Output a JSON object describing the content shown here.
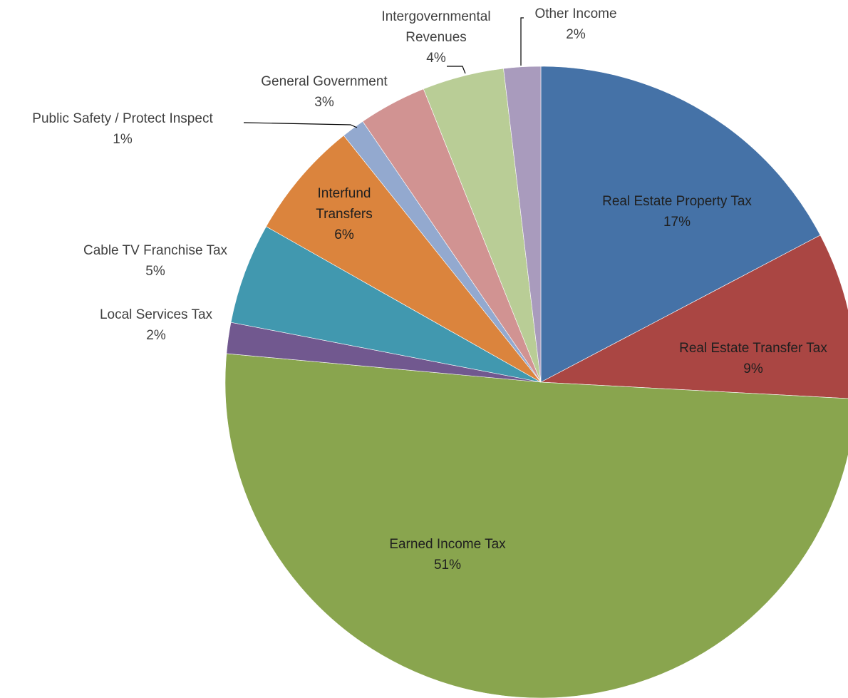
{
  "chart_data": {
    "type": "pie",
    "title": "",
    "start_angle_deg": 0,
    "direction": "clockwise",
    "legend": "none",
    "slices": [
      {
        "label": "Real Estate Property Tax",
        "pct_label": "17%",
        "value": 17.4,
        "color": "#4572A7"
      },
      {
        "label": "Real Estate Transfer Tax",
        "pct_label": "9%",
        "value": 8.6,
        "color": "#AA4643"
      },
      {
        "label": "Earned Income Tax",
        "pct_label": "51%",
        "value": 50.9,
        "color": "#89A54E"
      },
      {
        "label": "Local Services Tax",
        "pct_label": "2%",
        "value": 1.6,
        "color": "#71588F"
      },
      {
        "label": "Cable TV Franchise Tax",
        "pct_label": "5%",
        "value": 5.2,
        "color": "#4198AF"
      },
      {
        "label": "Interfund Transfers",
        "pct_label": "6%",
        "value": 6.1,
        "color": "#DB843D"
      },
      {
        "label": "Public Safety / Protect Inspect",
        "pct_label": "1%",
        "value": 1.2,
        "color": "#93A9CF"
      },
      {
        "label": "General Government",
        "pct_label": "3%",
        "value": 3.5,
        "color": "#D19392"
      },
      {
        "label": "Intergovernmental Revenues",
        "pct_label": "4%",
        "value": 4.2,
        "color": "#B9CD96"
      },
      {
        "label": "Other Income",
        "pct_label": "2%",
        "value": 1.9,
        "color": "#A99BBD"
      }
    ]
  }
}
